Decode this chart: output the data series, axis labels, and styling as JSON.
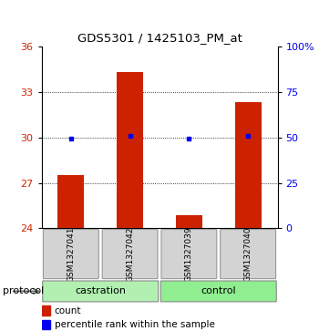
{
  "title": "GDS5301 / 1425103_PM_at",
  "samples": [
    "GSM1327041",
    "GSM1327042",
    "GSM1327039",
    "GSM1327040"
  ],
  "bar_color": "#cc2200",
  "dot_color": "#0000ee",
  "ylim_left": [
    24,
    36
  ],
  "ylim_right": [
    0,
    100
  ],
  "yticks_left": [
    24,
    27,
    30,
    33,
    36
  ],
  "yticks_right": [
    0,
    25,
    50,
    75,
    100
  ],
  "ytick_labels_right": [
    "0",
    "25",
    "50",
    "75",
    "100%"
  ],
  "bar_tops": [
    27.5,
    34.3,
    24.85,
    32.3
  ],
  "bar_base": 24.0,
  "percentile_values": [
    49.5,
    50.8,
    49.2,
    51.0
  ],
  "grid_yticks": [
    27,
    30,
    33
  ],
  "sample_box_color": "#d3d3d3",
  "legend_count_label": "count",
  "legend_pct_label": "percentile rank within the sample",
  "protocol_label": "protocol",
  "castration_color": "#b2f0b2",
  "control_color": "#90ee90"
}
